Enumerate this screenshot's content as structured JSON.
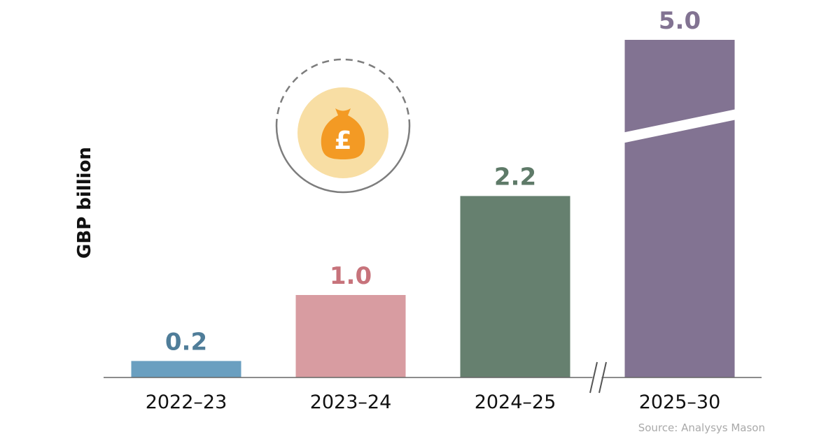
{
  "chart_data": {
    "type": "bar",
    "categories": [
      "2022–23",
      "2023–24",
      "2024–25",
      "2025–30"
    ],
    "values": [
      0.2,
      1.0,
      2.2,
      5.0
    ],
    "value_labels": [
      "0.2",
      "1.0",
      "2.2",
      "5.0"
    ],
    "colors": [
      "#6a9fc0",
      "#d89ca1",
      "#66806f",
      "#827392"
    ],
    "label_colors": [
      "#4f7d99",
      "#c7737b",
      "#5e7a68",
      "#827392"
    ],
    "ylabel": "GBP billion",
    "xlabel": "",
    "title": "",
    "broken_axis": true,
    "broken_bar": "2025–30",
    "grid": false,
    "legend": "none"
  },
  "source": "Source: Analysys Mason",
  "icon": {
    "name": "money-bag-icon",
    "glyph": "£",
    "bag_color": "#f39a24",
    "circle_color": "#f8dea4"
  }
}
